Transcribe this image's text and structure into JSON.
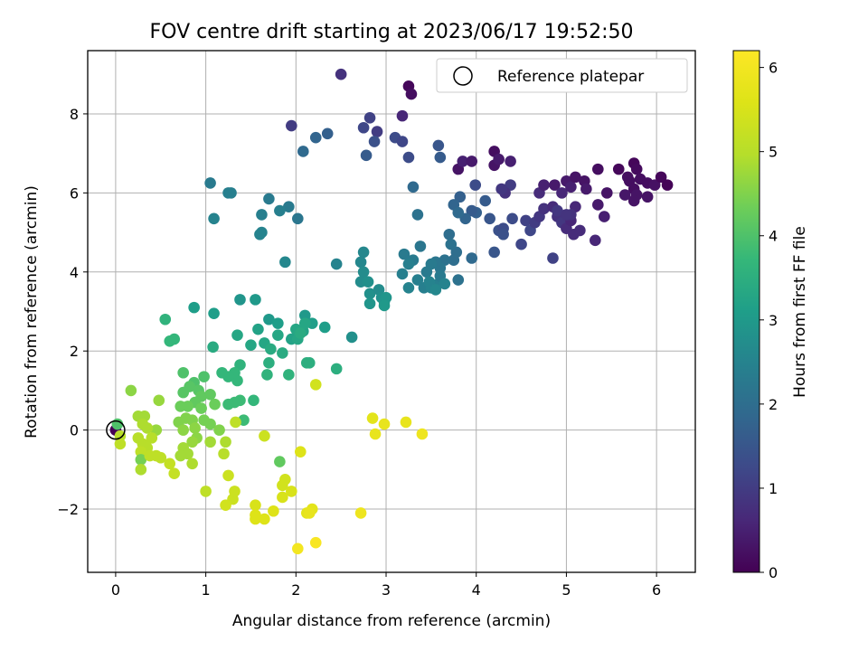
{
  "chart_data": {
    "type": "scatter",
    "title": "FOV centre drift starting at 2023/06/17 19:52:50",
    "xlabel": "Angular distance from reference (arcmin)",
    "ylabel": "Rotation from reference (arcmin)",
    "xlim": [
      -0.31,
      6.43
    ],
    "ylim": [
      -3.6,
      9.6
    ],
    "xticks": [
      0,
      1,
      2,
      3,
      4,
      5,
      6
    ],
    "yticks": [
      -2,
      0,
      2,
      4,
      6,
      8
    ],
    "grid": true,
    "legend": {
      "position": "top-right",
      "label": "Reference platepar"
    },
    "reference_point": {
      "x": 0,
      "y": 0
    },
    "colorbar": {
      "label": "Hours from first FF file",
      "range": [
        0,
        6.2
      ],
      "ticks": [
        0,
        1,
        2,
        3,
        4,
        5,
        6
      ],
      "colormap": "viridis"
    },
    "points": [
      [
        0.0,
        0.0,
        0.0
      ],
      [
        2.5,
        9.0,
        0.8
      ],
      [
        3.25,
        8.7,
        0.1
      ],
      [
        3.28,
        8.5,
        0.2
      ],
      [
        3.18,
        7.95,
        0.6
      ],
      [
        2.82,
        7.9,
        1.1
      ],
      [
        2.9,
        7.55,
        1.0
      ],
      [
        2.75,
        7.65,
        1.2
      ],
      [
        2.87,
        7.3,
        1.4
      ],
      [
        3.1,
        7.4,
        1.3
      ],
      [
        3.18,
        7.3,
        1.2
      ],
      [
        3.58,
        7.2,
        1.5
      ],
      [
        3.25,
        6.9,
        1.3
      ],
      [
        2.78,
        6.95,
        1.6
      ],
      [
        2.35,
        7.5,
        1.7
      ],
      [
        2.22,
        7.4,
        1.8
      ],
      [
        2.08,
        7.05,
        1.9
      ],
      [
        1.95,
        7.7,
        1.0
      ],
      [
        3.6,
        6.9,
        1.6
      ],
      [
        3.8,
        6.6,
        0.3
      ],
      [
        3.85,
        6.8,
        0.5
      ],
      [
        3.95,
        6.8,
        0.4
      ],
      [
        4.2,
        7.05,
        0.2
      ],
      [
        4.2,
        6.7,
        0.3
      ],
      [
        4.38,
        6.8,
        0.5
      ],
      [
        4.25,
        6.85,
        0.4
      ],
      [
        3.3,
        6.15,
        1.9
      ],
      [
        3.99,
        6.2,
        1.3
      ],
      [
        4.38,
        6.2,
        1.0
      ],
      [
        4.32,
        6.0,
        0.8
      ],
      [
        4.28,
        6.1,
        0.9
      ],
      [
        4.7,
        6.0,
        0.7
      ],
      [
        4.75,
        6.2,
        0.5
      ],
      [
        4.87,
        6.2,
        0.4
      ],
      [
        4.95,
        6.0,
        0.6
      ],
      [
        5.0,
        6.3,
        0.4
      ],
      [
        5.05,
        6.15,
        0.5
      ],
      [
        5.1,
        6.4,
        0.3
      ],
      [
        5.2,
        6.3,
        0.3
      ],
      [
        5.22,
        6.1,
        0.4
      ],
      [
        5.35,
        6.6,
        0.2
      ],
      [
        5.45,
        6.0,
        0.3
      ],
      [
        5.58,
        6.6,
        0.1
      ],
      [
        5.68,
        6.4,
        0.2
      ],
      [
        5.75,
        6.75,
        0.1
      ],
      [
        5.78,
        6.6,
        0.15
      ],
      [
        5.82,
        6.35,
        0.2
      ],
      [
        5.9,
        6.25,
        0.2
      ],
      [
        5.98,
        6.2,
        0.25
      ],
      [
        5.7,
        6.3,
        0.2
      ],
      [
        5.75,
        6.1,
        0.2
      ],
      [
        5.78,
        5.95,
        0.3
      ],
      [
        5.9,
        5.9,
        0.3
      ],
      [
        6.05,
        6.4,
        0.1
      ],
      [
        6.12,
        6.2,
        0.05
      ],
      [
        5.75,
        5.8,
        0.3
      ],
      [
        5.65,
        5.95,
        0.35
      ],
      [
        4.4,
        5.35,
        1.3
      ],
      [
        4.25,
        5.05,
        1.4
      ],
      [
        4.15,
        5.35,
        1.5
      ],
      [
        4.1,
        5.8,
        1.6
      ],
      [
        4.0,
        5.5,
        1.7
      ],
      [
        3.95,
        5.55,
        1.6
      ],
      [
        3.88,
        5.35,
        1.8
      ],
      [
        3.82,
        5.9,
        1.7
      ],
      [
        3.75,
        5.7,
        1.8
      ],
      [
        3.8,
        5.5,
        1.9
      ],
      [
        4.55,
        5.3,
        1.1
      ],
      [
        4.6,
        5.05,
        1.2
      ],
      [
        4.65,
        5.25,
        1.0
      ],
      [
        4.7,
        5.4,
        0.9
      ],
      [
        4.75,
        5.6,
        0.8
      ],
      [
        4.85,
        5.65,
        0.7
      ],
      [
        4.9,
        5.4,
        0.8
      ],
      [
        4.95,
        5.25,
        0.9
      ],
      [
        5.0,
        5.1,
        0.7
      ],
      [
        5.05,
        5.3,
        0.6
      ],
      [
        5.1,
        5.65,
        0.6
      ],
      [
        5.05,
        5.45,
        0.8
      ],
      [
        4.9,
        5.55,
        0.9
      ],
      [
        5.0,
        5.45,
        0.85
      ],
      [
        5.08,
        4.95,
        0.7
      ],
      [
        5.15,
        5.05,
        0.7
      ],
      [
        5.32,
        4.8,
        0.6
      ],
      [
        5.42,
        5.4,
        0.5
      ],
      [
        5.35,
        5.7,
        0.4
      ],
      [
        4.85,
        4.35,
        1.1
      ],
      [
        4.5,
        4.7,
        1.2
      ],
      [
        4.3,
        5.1,
        1.3
      ],
      [
        4.3,
        4.95,
        1.4
      ],
      [
        4.2,
        4.5,
        1.5
      ],
      [
        3.95,
        4.35,
        1.9
      ],
      [
        3.78,
        4.5,
        2.0
      ],
      [
        3.8,
        3.8,
        2.1
      ],
      [
        3.75,
        4.3,
        2.0
      ],
      [
        3.7,
        4.95,
        2.0
      ],
      [
        3.72,
        4.7,
        2.1
      ],
      [
        3.65,
        4.3,
        2.1
      ],
      [
        3.6,
        4.1,
        2.2
      ],
      [
        3.55,
        4.25,
        2.2
      ],
      [
        3.5,
        4.2,
        2.3
      ],
      [
        3.45,
        4.0,
        2.3
      ],
      [
        3.42,
        3.6,
        2.4
      ],
      [
        3.35,
        3.8,
        2.4
      ],
      [
        3.3,
        4.3,
        2.3
      ],
      [
        3.25,
        4.2,
        2.4
      ],
      [
        3.2,
        4.45,
        2.3
      ],
      [
        3.38,
        4.65,
        2.2
      ],
      [
        3.35,
        5.45,
        2.1
      ],
      [
        3.18,
        3.95,
        2.4
      ],
      [
        3.25,
        3.6,
        2.5
      ],
      [
        3.5,
        3.6,
        2.5
      ],
      [
        3.58,
        3.7,
        2.4
      ],
      [
        3.6,
        3.9,
        2.3
      ],
      [
        3.48,
        3.75,
        2.5
      ],
      [
        3.55,
        3.55,
        2.6
      ],
      [
        3.65,
        3.7,
        2.5
      ],
      [
        2.75,
        4.5,
        2.6
      ],
      [
        2.72,
        4.25,
        2.6
      ],
      [
        2.75,
        4.0,
        2.7
      ],
      [
        2.72,
        3.75,
        2.7
      ],
      [
        2.8,
        3.75,
        2.8
      ],
      [
        2.82,
        3.45,
        2.8
      ],
      [
        2.82,
        3.2,
        2.9
      ],
      [
        2.92,
        3.55,
        2.7
      ],
      [
        2.95,
        3.35,
        2.8
      ],
      [
        2.98,
        3.25,
        2.9
      ],
      [
        3.0,
        3.35,
        2.9
      ],
      [
        2.98,
        3.15,
        3.0
      ],
      [
        2.45,
        4.2,
        2.5
      ],
      [
        2.62,
        2.35,
        2.8
      ],
      [
        1.05,
        6.25,
        2.3
      ],
      [
        1.25,
        6.0,
        2.4
      ],
      [
        1.28,
        6.0,
        2.4
      ],
      [
        1.7,
        5.85,
        2.3
      ],
      [
        1.92,
        5.65,
        2.3
      ],
      [
        1.82,
        5.55,
        2.4
      ],
      [
        1.62,
        5.45,
        2.4
      ],
      [
        2.02,
        5.35,
        2.2
      ],
      [
        1.09,
        5.35,
        2.5
      ],
      [
        1.62,
        5.0,
        2.5
      ],
      [
        1.6,
        4.95,
        2.5
      ],
      [
        1.88,
        4.25,
        2.6
      ],
      [
        1.38,
        3.3,
        2.9
      ],
      [
        1.55,
        3.3,
        3.0
      ],
      [
        0.87,
        3.1,
        3.1
      ],
      [
        1.09,
        2.95,
        3.1
      ],
      [
        1.7,
        2.8,
        3.0
      ],
      [
        1.8,
        2.7,
        3.1
      ],
      [
        2.1,
        2.9,
        3.0
      ],
      [
        2.18,
        2.7,
        3.1
      ],
      [
        2.32,
        2.6,
        3.1
      ],
      [
        1.58,
        2.55,
        3.2
      ],
      [
        1.35,
        2.4,
        3.3
      ],
      [
        1.95,
        2.3,
        3.2
      ],
      [
        1.8,
        2.4,
        3.3
      ],
      [
        1.65,
        2.2,
        3.3
      ],
      [
        1.72,
        2.05,
        3.4
      ],
      [
        1.5,
        2.15,
        3.3
      ],
      [
        2.02,
        2.3,
        3.3
      ],
      [
        2.08,
        2.5,
        3.2
      ],
      [
        2.0,
        2.55,
        3.3
      ],
      [
        2.1,
        2.7,
        3.3
      ],
      [
        2.05,
        2.45,
        3.4
      ],
      [
        1.85,
        1.95,
        3.4
      ],
      [
        1.7,
        1.7,
        3.5
      ],
      [
        1.92,
        1.4,
        3.6
      ],
      [
        2.12,
        1.7,
        3.5
      ],
      [
        2.15,
        1.7,
        3.5
      ],
      [
        2.45,
        1.55,
        3.5
      ],
      [
        1.68,
        1.4,
        3.6
      ],
      [
        1.38,
        1.65,
        3.6
      ],
      [
        1.32,
        1.45,
        3.7
      ],
      [
        1.35,
        1.25,
        3.7
      ],
      [
        1.25,
        1.35,
        3.7
      ],
      [
        1.18,
        1.45,
        3.7
      ],
      [
        1.38,
        0.75,
        3.8
      ],
      [
        1.32,
        0.7,
        3.8
      ],
      [
        1.25,
        0.65,
        3.8
      ],
      [
        1.53,
        0.75,
        3.7
      ],
      [
        1.42,
        0.25,
        3.8
      ],
      [
        1.08,
        2.1,
        3.4
      ],
      [
        0.55,
        2.8,
        3.6
      ],
      [
        0.6,
        2.25,
        3.7
      ],
      [
        0.65,
        2.3,
        3.7
      ],
      [
        0.75,
        1.45,
        4.0
      ],
      [
        0.87,
        1.2,
        4.0
      ],
      [
        0.98,
        1.35,
        4.0
      ],
      [
        0.82,
        1.1,
        4.1
      ],
      [
        0.75,
        0.95,
        4.1
      ],
      [
        0.92,
        1.0,
        4.1
      ],
      [
        0.95,
        0.85,
        4.2
      ],
      [
        1.05,
        0.9,
        4.2
      ],
      [
        0.88,
        0.7,
        4.2
      ],
      [
        0.8,
        0.6,
        4.3
      ],
      [
        0.72,
        0.6,
        4.3
      ],
      [
        0.95,
        0.55,
        4.3
      ],
      [
        0.98,
        0.25,
        4.4
      ],
      [
        1.05,
        0.15,
        4.4
      ],
      [
        1.15,
        0.0,
        4.5
      ],
      [
        1.1,
        0.65,
        4.3
      ],
      [
        0.85,
        0.25,
        4.5
      ],
      [
        0.78,
        0.3,
        4.5
      ],
      [
        0.7,
        0.2,
        4.5
      ],
      [
        0.75,
        0.0,
        4.6
      ],
      [
        0.88,
        0.05,
        4.6
      ],
      [
        0.9,
        -0.2,
        4.6
      ],
      [
        0.85,
        -0.3,
        4.7
      ],
      [
        0.75,
        -0.45,
        4.8
      ],
      [
        0.8,
        -0.6,
        4.8
      ],
      [
        0.72,
        -0.65,
        4.8
      ],
      [
        0.85,
        -0.85,
        4.9
      ],
      [
        1.05,
        -0.3,
        4.8
      ],
      [
        1.22,
        -0.3,
        4.9
      ],
      [
        1.2,
        -0.6,
        5.0
      ],
      [
        1.0,
        -1.55,
        5.1
      ],
      [
        0.17,
        1.0,
        4.6
      ],
      [
        0.48,
        0.75,
        4.7
      ],
      [
        0.45,
        0.0,
        4.7
      ],
      [
        0.32,
        0.35,
        4.8
      ],
      [
        0.25,
        0.35,
        4.8
      ],
      [
        0.3,
        0.15,
        4.9
      ],
      [
        0.35,
        0.05,
        4.9
      ],
      [
        0.4,
        -0.2,
        5.0
      ],
      [
        0.25,
        -0.2,
        5.0
      ],
      [
        0.3,
        -0.35,
        5.0
      ],
      [
        0.35,
        -0.45,
        5.0
      ],
      [
        0.28,
        -0.55,
        5.1
      ],
      [
        0.28,
        -0.75,
        4.4
      ],
      [
        0.28,
        -1.0,
        4.9
      ],
      [
        0.45,
        -0.65,
        5.1
      ],
      [
        0.38,
        -0.65,
        5.1
      ],
      [
        0.5,
        -0.7,
        5.1
      ],
      [
        0.6,
        -0.85,
        5.2
      ],
      [
        0.65,
        -1.1,
        5.2
      ],
      [
        0.05,
        -0.15,
        5.0
      ],
      [
        0.05,
        -0.35,
        5.1
      ],
      [
        0.02,
        0.15,
        4.0
      ],
      [
        1.55,
        -1.9,
        5.5
      ],
      [
        1.55,
        -2.15,
        5.6
      ],
      [
        1.55,
        -2.25,
        5.6
      ],
      [
        1.65,
        -2.25,
        5.6
      ],
      [
        1.75,
        -2.05,
        5.6
      ],
      [
        1.95,
        -1.55,
        5.5
      ],
      [
        1.85,
        -1.7,
        5.5
      ],
      [
        1.88,
        -1.25,
        5.4
      ],
      [
        1.85,
        -1.4,
        5.4
      ],
      [
        1.82,
        -0.8,
        4.2
      ],
      [
        1.65,
        -0.15,
        5.3
      ],
      [
        2.05,
        -0.55,
        5.6
      ],
      [
        2.12,
        -2.1,
        5.7
      ],
      [
        2.18,
        -2.0,
        5.7
      ],
      [
        2.15,
        -2.1,
        5.8
      ],
      [
        2.02,
        -3.0,
        6.0
      ],
      [
        2.22,
        -2.85,
        6.1
      ],
      [
        1.3,
        -1.75,
        5.3
      ],
      [
        1.32,
        -1.55,
        5.3
      ],
      [
        1.25,
        -1.15,
        5.3
      ],
      [
        1.22,
        -1.9,
        5.4
      ],
      [
        2.72,
        -2.1,
        5.9
      ],
      [
        2.85,
        0.3,
        5.7
      ],
      [
        2.88,
        -0.1,
        5.8
      ],
      [
        2.98,
        0.15,
        5.8
      ],
      [
        3.22,
        0.2,
        5.8
      ],
      [
        3.4,
        -0.1,
        5.9
      ],
      [
        1.33,
        0.2,
        5.1
      ],
      [
        2.22,
        1.15,
        5.4
      ]
    ]
  }
}
